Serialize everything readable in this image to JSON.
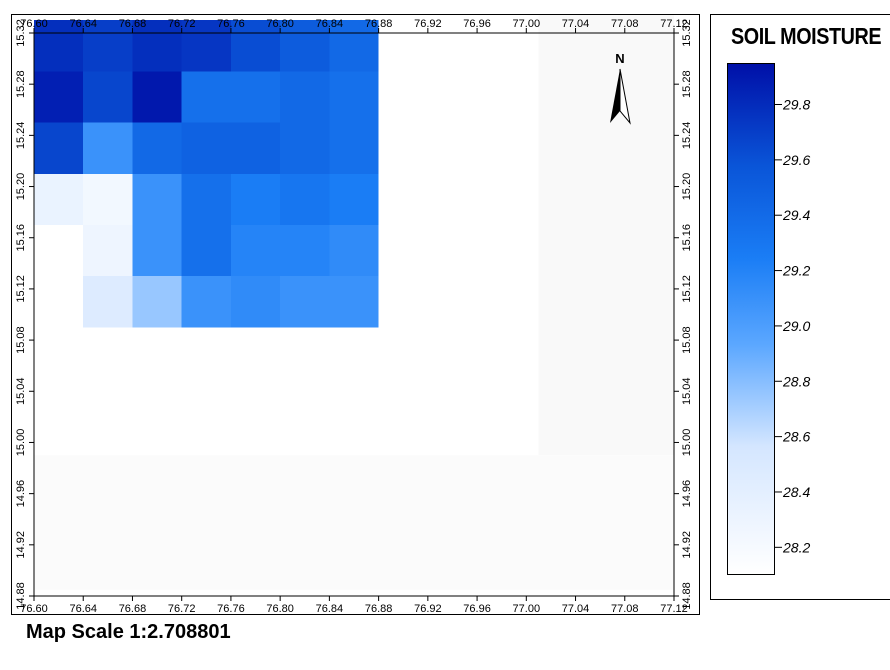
{
  "legend": {
    "title": "SOIL MOISTURE",
    "ticks": [
      "29.8",
      "29.6",
      "29.4",
      "29.2",
      "29.0",
      "28.8",
      "28.6",
      "28.4",
      "28.2"
    ],
    "tick_values": [
      29.8,
      29.6,
      29.4,
      29.2,
      29.0,
      28.8,
      28.6,
      28.4,
      28.2
    ],
    "range": [
      28.1,
      29.95
    ],
    "color_low": "#ffffff",
    "color_high": "#0010a8"
  },
  "map_scale": "Map Scale 1:2.708801",
  "north_arrow": "north-arrow-icon",
  "chart_data": {
    "type": "heatmap",
    "title": "",
    "xlabel": "",
    "ylabel": "",
    "x_ticks": [
      "76.60",
      "76.64",
      "76.68",
      "76.72",
      "76.76",
      "76.80",
      "76.84",
      "76.88",
      "76.92",
      "76.96",
      "77.00",
      "77.04",
      "77.08",
      "77.12"
    ],
    "y_ticks": [
      "15.32",
      "15.28",
      "15.24",
      "15.20",
      "15.16",
      "15.12",
      "15.08",
      "15.04",
      "15.00",
      "14.96",
      "14.92",
      "14.88"
    ],
    "xlim": [
      76.6,
      77.12
    ],
    "ylim": [
      14.88,
      15.32
    ],
    "cell_size_deg": [
      0.04,
      0.04
    ],
    "colorbar": {
      "label": "SOIL MOISTURE",
      "range": [
        28.2,
        29.8
      ]
    },
    "cells": [
      {
        "lon": 76.62,
        "lat": 15.31,
        "value": 29.75
      },
      {
        "lon": 76.66,
        "lat": 15.31,
        "value": 29.65
      },
      {
        "lon": 76.7,
        "lat": 15.31,
        "value": 29.75
      },
      {
        "lon": 76.74,
        "lat": 15.31,
        "value": 29.7
      },
      {
        "lon": 76.78,
        "lat": 15.31,
        "value": 29.55
      },
      {
        "lon": 76.82,
        "lat": 15.31,
        "value": 29.45
      },
      {
        "lon": 76.86,
        "lat": 15.31,
        "value": 29.35
      },
      {
        "lon": 76.62,
        "lat": 15.27,
        "value": 29.85
      },
      {
        "lon": 76.66,
        "lat": 15.27,
        "value": 29.6
      },
      {
        "lon": 76.7,
        "lat": 15.27,
        "value": 29.9
      },
      {
        "lon": 76.74,
        "lat": 15.27,
        "value": 29.3
      },
      {
        "lon": 76.78,
        "lat": 15.27,
        "value": 29.3
      },
      {
        "lon": 76.82,
        "lat": 15.27,
        "value": 29.35
      },
      {
        "lon": 76.86,
        "lat": 15.27,
        "value": 29.3
      },
      {
        "lon": 76.62,
        "lat": 15.23,
        "value": 29.6
      },
      {
        "lon": 76.66,
        "lat": 15.23,
        "value": 29.05
      },
      {
        "lon": 76.7,
        "lat": 15.23,
        "value": 29.35
      },
      {
        "lon": 76.74,
        "lat": 15.23,
        "value": 29.4
      },
      {
        "lon": 76.78,
        "lat": 15.23,
        "value": 29.4
      },
      {
        "lon": 76.82,
        "lat": 15.23,
        "value": 29.35
      },
      {
        "lon": 76.86,
        "lat": 15.23,
        "value": 29.3
      },
      {
        "lon": 76.62,
        "lat": 15.19,
        "value": 28.35
      },
      {
        "lon": 76.66,
        "lat": 15.19,
        "value": 28.25
      },
      {
        "lon": 76.7,
        "lat": 15.19,
        "value": 29.05
      },
      {
        "lon": 76.74,
        "lat": 15.19,
        "value": 29.3
      },
      {
        "lon": 76.78,
        "lat": 15.19,
        "value": 29.2
      },
      {
        "lon": 76.82,
        "lat": 15.19,
        "value": 29.25
      },
      {
        "lon": 76.86,
        "lat": 15.19,
        "value": 29.2
      },
      {
        "lon": 76.66,
        "lat": 15.15,
        "value": 28.3
      },
      {
        "lon": 76.7,
        "lat": 15.15,
        "value": 29.05
      },
      {
        "lon": 76.74,
        "lat": 15.15,
        "value": 29.3
      },
      {
        "lon": 76.78,
        "lat": 15.15,
        "value": 29.15
      },
      {
        "lon": 76.82,
        "lat": 15.15,
        "value": 29.15
      },
      {
        "lon": 76.86,
        "lat": 15.15,
        "value": 29.1
      },
      {
        "lon": 76.66,
        "lat": 15.11,
        "value": 28.5
      },
      {
        "lon": 76.7,
        "lat": 15.11,
        "value": 28.75
      },
      {
        "lon": 76.74,
        "lat": 15.11,
        "value": 29.05
      },
      {
        "lon": 76.78,
        "lat": 15.11,
        "value": 29.1
      },
      {
        "lon": 76.82,
        "lat": 15.11,
        "value": 29.05
      },
      {
        "lon": 76.86,
        "lat": 15.11,
        "value": 29.05
      }
    ]
  }
}
